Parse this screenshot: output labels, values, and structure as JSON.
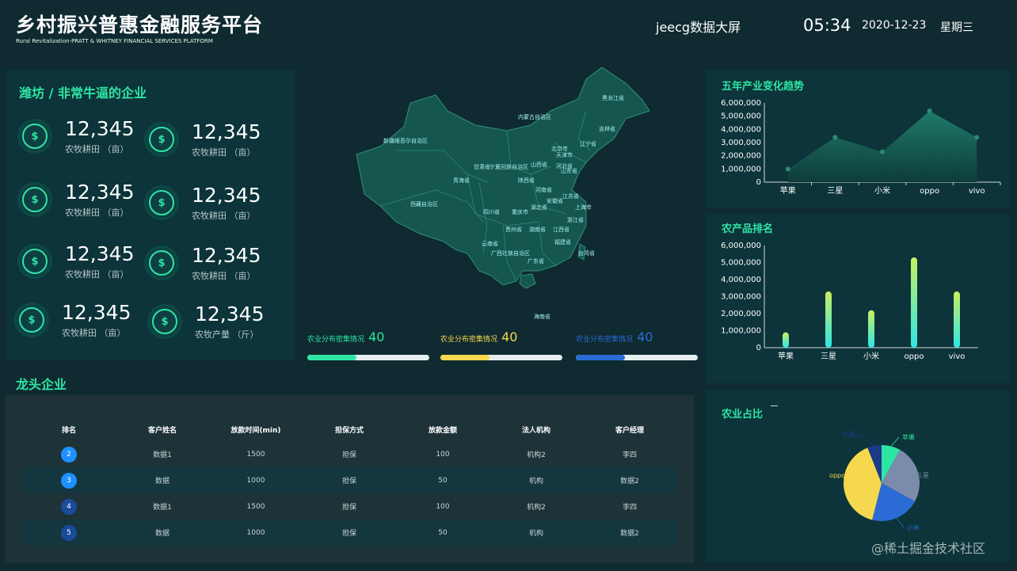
{
  "header": {
    "title": "乡村振兴普惠金融服务平台",
    "subtitle": "Rural Revitalization-PRATT & WHITNEY FINANCIAL SERVICES PLATFORM",
    "brand": "jeecg数据大屏",
    "time": "05:34",
    "date": "2020-12-23",
    "weekday": "星期三"
  },
  "left_panel": {
    "title": "潍坊 / 非常牛逼的企业",
    "stats": [
      {
        "value": "12,345",
        "label": "农牧耕田 （亩）"
      },
      {
        "value": "12,345",
        "label": "农牧耕田 （亩）"
      },
      {
        "value": "12,345",
        "label": "农牧耕田 （亩）"
      },
      {
        "value": "12,345",
        "label": "农牧耕田 （亩）"
      },
      {
        "value": "12,345",
        "label": "农牧耕田 （亩）"
      },
      {
        "value": "12,345",
        "label": "农牧耕田 （亩）"
      },
      {
        "value": "12,345",
        "label": "农牧耕田 （亩）"
      },
      {
        "value": "12,345",
        "label": "农牧产量 （斤）"
      }
    ]
  },
  "map": {
    "provinces": [
      "黑龙江省",
      "吉林省",
      "辽宁省",
      "内蒙古自治区",
      "新疆维吾尔自治区",
      "甘肃省",
      "宁夏回族自治区",
      "青海省",
      "西藏自治区",
      "四川省",
      "重庆市",
      "陕西省",
      "山西省",
      "河北省",
      "北京市",
      "天津市",
      "山东省",
      "河南省",
      "江苏省",
      "安徽省",
      "湖北省",
      "上海市",
      "浙江省",
      "湖南省",
      "江西省",
      "福建省",
      "贵州省",
      "云南省",
      "广西壮族自治区",
      "广东省",
      "台湾省",
      "海南省"
    ]
  },
  "progress": [
    {
      "label": "农业分布密集情况",
      "value": 40,
      "fill": 0.4,
      "color": "#2ee6a3"
    },
    {
      "label": "农业分布密集情况",
      "value": 40,
      "fill": 0.4,
      "color": "#f6d84e"
    },
    {
      "label": "农业分布密集情况",
      "value": 40,
      "fill": 0.4,
      "color": "#2a6bd6"
    }
  ],
  "table": {
    "section_title": "龙头企业",
    "headers": [
      "排名",
      "客户姓名",
      "放款时间(min)",
      "担保方式",
      "放款金额",
      "法人机构",
      "客户经理"
    ],
    "rows": [
      {
        "rank": "2",
        "rank_color": "#1e90ff",
        "cells": [
          "数据1",
          "1500",
          "担保",
          "100",
          "机构2",
          "李四"
        ]
      },
      {
        "rank": "3",
        "rank_color": "#1e90ff",
        "cells": [
          "数据",
          "1000",
          "担保",
          "50",
          "机构",
          "数据2"
        ]
      },
      {
        "rank": "4",
        "rank_color": "#1a4a9a",
        "cells": [
          "数据1",
          "1500",
          "担保",
          "100",
          "机构2",
          "李四"
        ]
      },
      {
        "rank": "5",
        "rank_color": "#1a4a9a",
        "cells": [
          "数据",
          "1000",
          "担保",
          "50",
          "机构",
          "数据2"
        ]
      }
    ]
  },
  "chart_data": [
    {
      "type": "area",
      "title": "五年产业变化趋势",
      "categories": [
        "苹果",
        "三星",
        "小米",
        "oppo",
        "vivo"
      ],
      "values": [
        1000000,
        3400000,
        2300000,
        5400000,
        3400000
      ],
      "ylim": [
        0,
        6000000
      ],
      "yticks": [
        "0",
        "1,000,000",
        "2,000,000",
        "3,000,000",
        "4,000,000",
        "5,000,000",
        "6,000,000"
      ],
      "color": "#1e6a5c"
    },
    {
      "type": "bar",
      "title": "农产品排名",
      "categories": [
        "苹果",
        "三星",
        "小米",
        "oppo",
        "vivo"
      ],
      "values": [
        900000,
        3300000,
        2200000,
        5300000,
        3300000
      ],
      "ylim": [
        0,
        6000000
      ],
      "yticks": [
        "0",
        "1,000,000",
        "2,000,000",
        "3,000,000",
        "4,000,000",
        "5,000,000",
        "6,000,000"
      ],
      "colors": [
        "#2ee6e6",
        "#c8f060"
      ]
    },
    {
      "type": "pie",
      "title": "农业占比",
      "labels": [
        "苹果",
        "三星",
        "小米",
        "oppo",
        "大疆"
      ],
      "values": [
        8,
        25,
        21,
        40,
        6
      ],
      "colors": [
        "#2ee6a3",
        "#7b8caa",
        "#2a6bd6",
        "#f6d84e",
        "#1a3a8a"
      ],
      "legend_note": "━━━"
    }
  ],
  "watermark": "@稀土掘金技术社区"
}
